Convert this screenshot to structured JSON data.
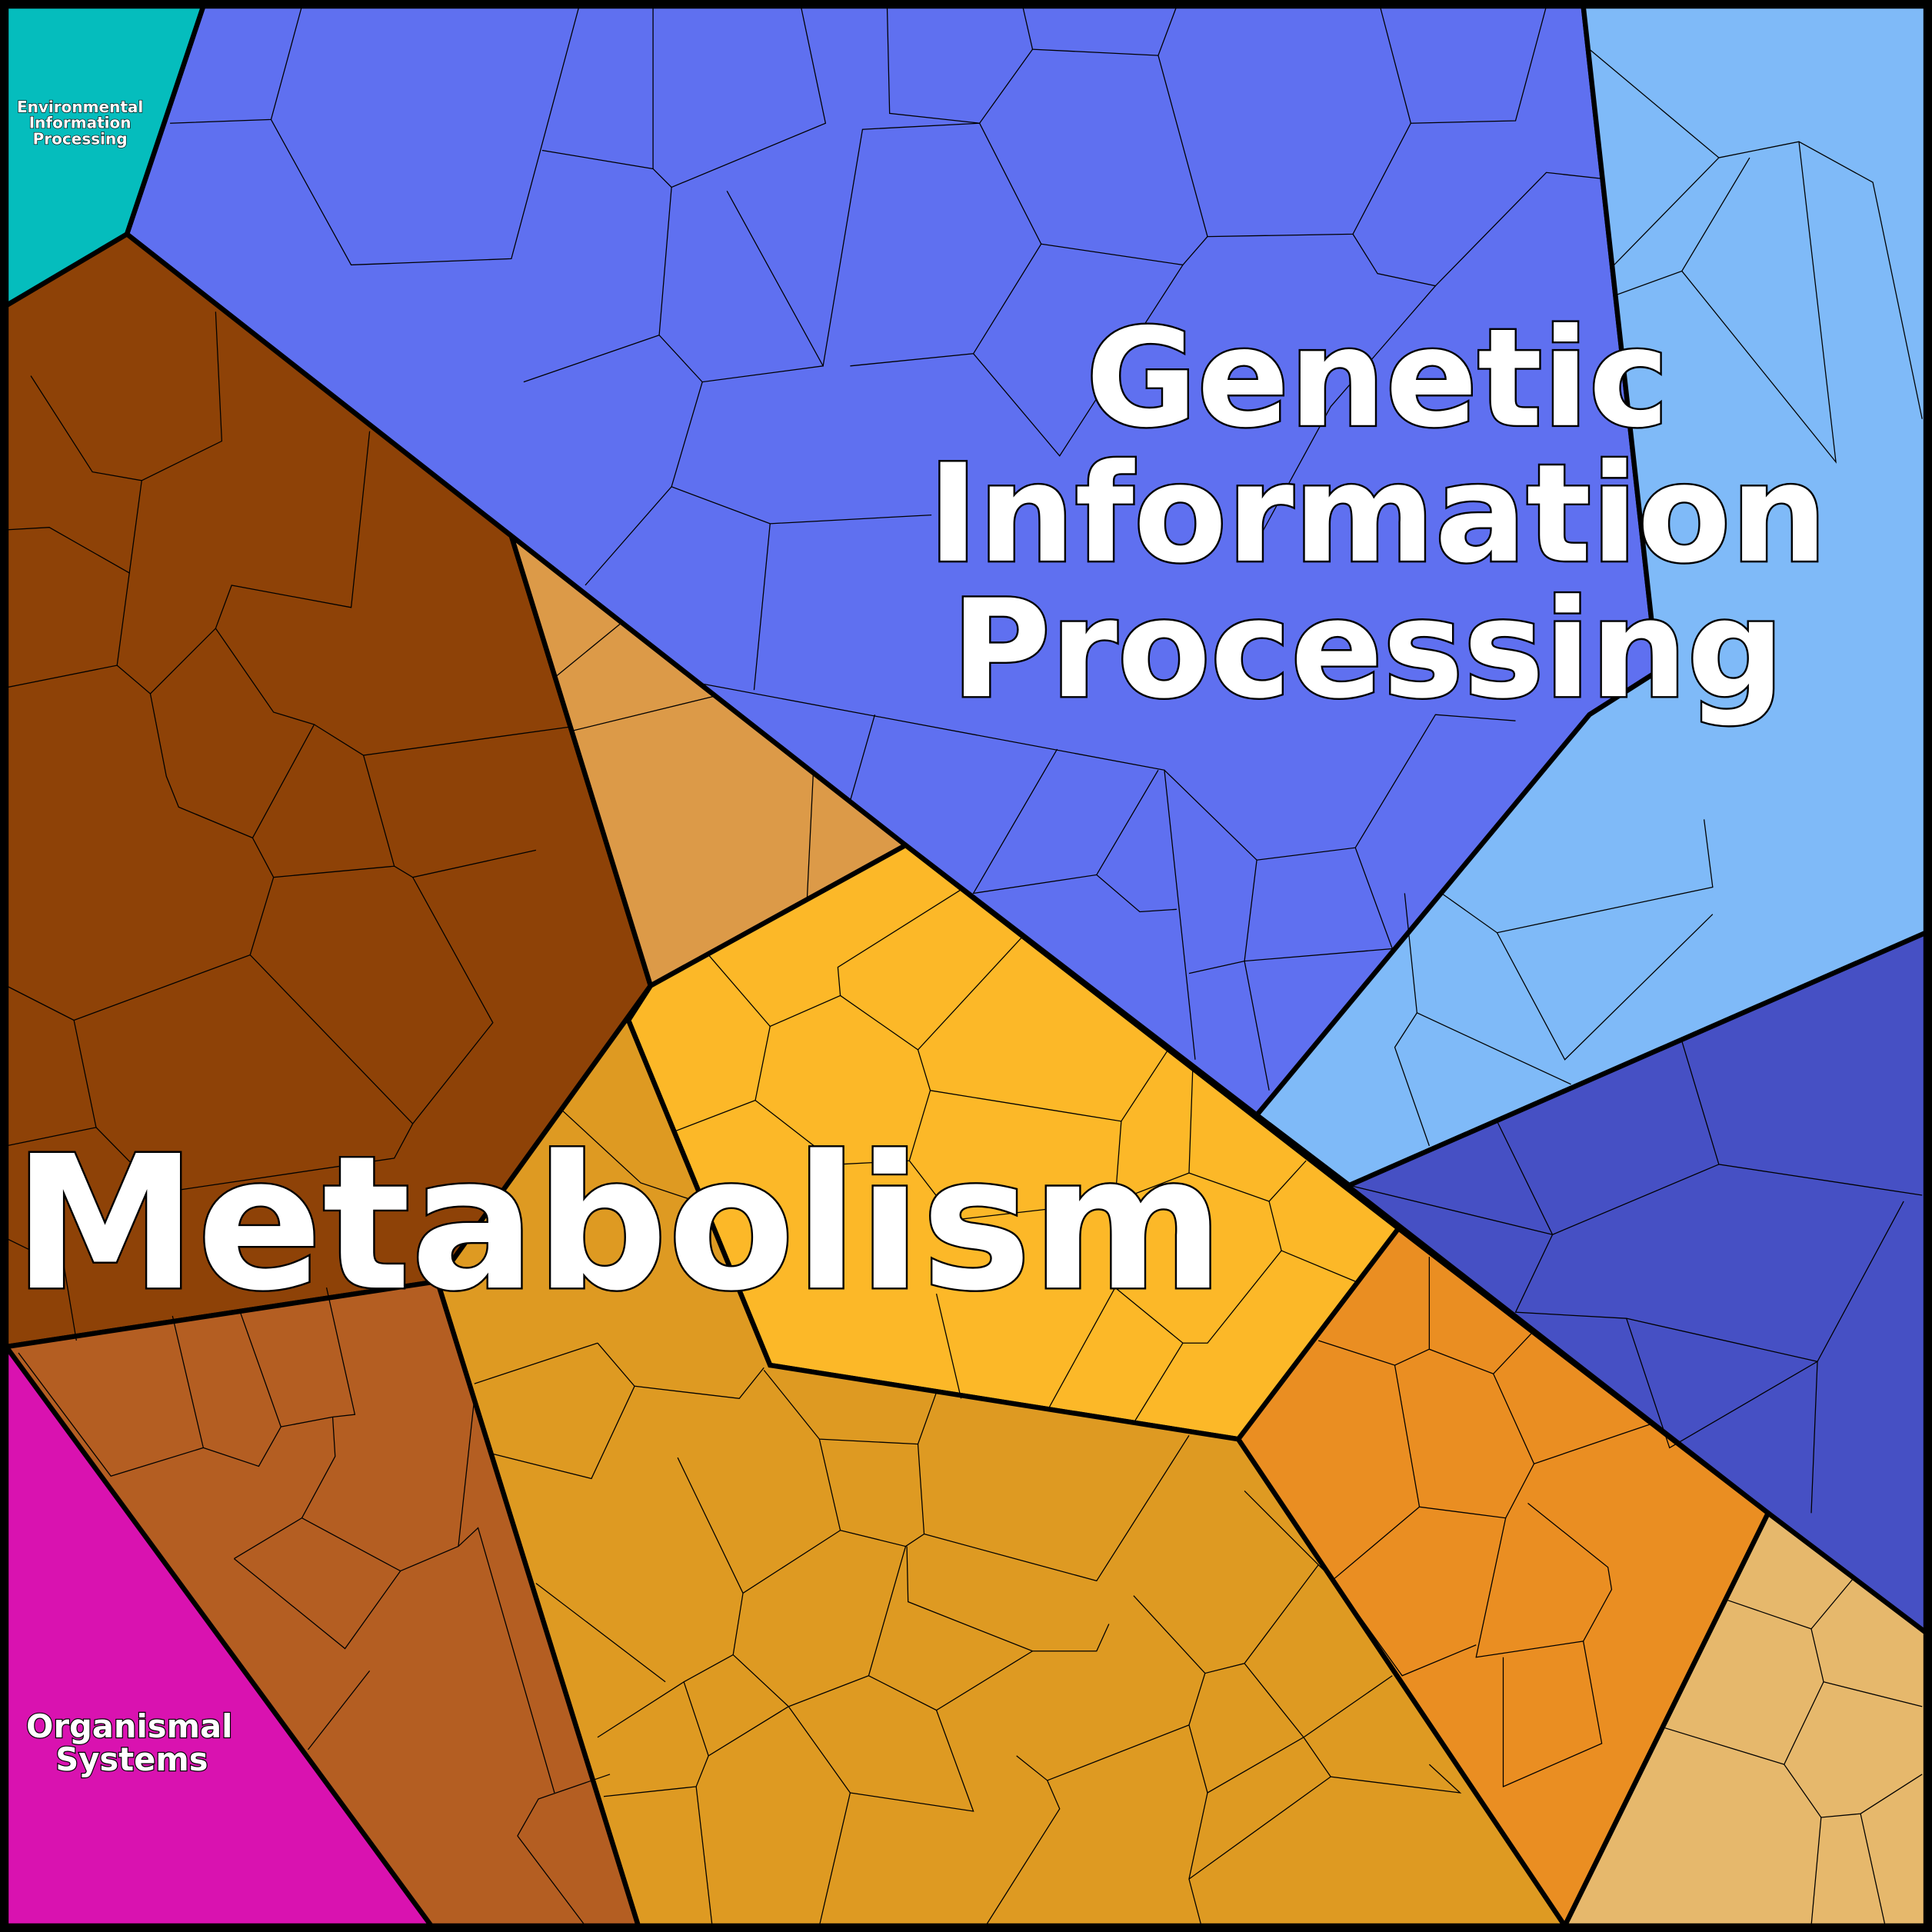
{
  "categories": [
    {
      "id": "environmental",
      "label_lines": [
        "Environmental",
        "Information",
        "Processing"
      ],
      "color": "#05BDBD"
    },
    {
      "id": "genetic",
      "label_lines": [
        "Genetic",
        "Information",
        "Processing"
      ],
      "color": "#5F6FF0"
    },
    {
      "id": "metabolism",
      "label_lines": [
        "Metabolism"
      ],
      "color": "#F0A020"
    },
    {
      "id": "organismal",
      "label_lines": [
        "Organismal",
        "Systems"
      ],
      "color": "#D912B0"
    }
  ],
  "subregion_colors": {
    "genetic_main": "#5F70F0",
    "genetic_light": "#7FBAF8",
    "genetic_indigo": "#4650C4",
    "metabolism_brown": "#8E4207",
    "metabolism_tan": "#DC9A48",
    "metabolism_yellow": "#FCB828",
    "metabolism_gold": "#DE9A22",
    "metabolism_orange": "#EA8E22",
    "metabolism_peach": "#E6B86C",
    "metabolism_rust": "#B45E22"
  }
}
